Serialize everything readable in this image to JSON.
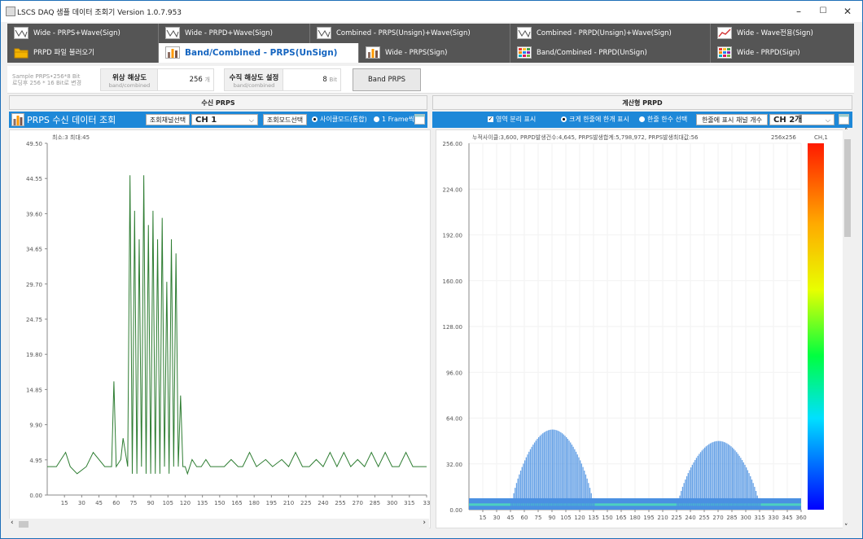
{
  "window": {
    "title": "LSCS DAQ 샘플 데이터 조회기 Version 1.0.7.953",
    "controls": {
      "min": "–",
      "max": "☐",
      "close": "✕"
    }
  },
  "tabs_row1": [
    {
      "label": "Wide - PRPS+Wave(Sign)",
      "icon": "wave-chart-icon"
    },
    {
      "label": "Wide - PRPD+Wave(Sign)",
      "icon": "wave-chart-icon"
    },
    {
      "label": "Combined - PRPS(Unsign)+Wave(Sign)",
      "icon": "wave-chart-icon"
    },
    {
      "label": "Combined - PRPD(Unsign)+Wave(Sign)",
      "icon": "wave-chart-icon"
    },
    {
      "label": "Wide - Wave전용(Sign)",
      "icon": "line-chart-icon"
    }
  ],
  "tabs_row2": [
    {
      "label": "PRPD 파일 불러오기",
      "icon": "folder-icon"
    },
    {
      "label": "Band/Combined - PRPS(UnSign)",
      "icon": "bar-chart-icon",
      "active": true
    },
    {
      "label": "Wide - PRPS(Sign)",
      "icon": "bar-chart-icon"
    },
    {
      "label": "Band/Combined - PRPD(UnSign)",
      "icon": "grid-chart-icon"
    },
    {
      "label": "Wide - PRPD(Sign)",
      "icon": "grid-chart-icon"
    }
  ],
  "settings": {
    "sample_line1": "Sample PRPS•256*8 Bit",
    "sample_line2": "로딩후 256 * 16 Bit로 변경",
    "phase_title": "위상 해상도",
    "phase_sub": "band/combined",
    "phase_value": "256",
    "phase_unit": "개",
    "vert_title": "수직 해상도 설정",
    "vert_sub": "band/combined",
    "vert_value": "8",
    "vert_unit": "Bit",
    "band_button": "Band PRPS"
  },
  "left": {
    "section": "수신 PRPS",
    "bar_title": "PRPS 수신 데이터 조회",
    "channel_label": "조회채널선택",
    "channel_value": "CH 1",
    "mode_label": "조회모드선택",
    "radio_cycle": "사이클모드(통합)",
    "radio_frame": "1 Frame씩"
  },
  "right": {
    "section": "계산형 PRPD",
    "check_label": "영역 분리 표시",
    "radio1": "크게 한줄에 한개 표시",
    "radio2": "한줄 한수 선택",
    "count_label": "한줄에 표시 채널 개수",
    "count_value": "CH 2개"
  },
  "chart_data": [
    {
      "type": "line",
      "title": "",
      "annotation": "최소:3 최대:45",
      "ylim": [
        0,
        49.5
      ],
      "y_ticks": [
        "0.00",
        "4.95",
        "9.90",
        "14.85",
        "19.80",
        "24.75",
        "29.70",
        "34.65",
        "39.60",
        "44.55",
        "49.50"
      ],
      "x_ticks": [
        "15",
        "30",
        "45",
        "60",
        "75",
        "90",
        "105",
        "120",
        "135",
        "150",
        "165",
        "180",
        "195",
        "210",
        "225",
        "240",
        "255",
        "270",
        "285",
        "300",
        "315",
        "33"
      ],
      "series": [
        {
          "color": "#2e7d32",
          "x": [
            0,
            8,
            16,
            20,
            26,
            34,
            40,
            50,
            56,
            58,
            60,
            64,
            66,
            70,
            72,
            74,
            76,
            78,
            80,
            82,
            84,
            86,
            88,
            90,
            92,
            94,
            96,
            98,
            100,
            102,
            104,
            106,
            108,
            110,
            112,
            114,
            116,
            118,
            120,
            122,
            126,
            130,
            134,
            138,
            142,
            146,
            150,
            154,
            160,
            166,
            170,
            176,
            182,
            190,
            196,
            204,
            210,
            216,
            222,
            228,
            234,
            240,
            246,
            252,
            258,
            264,
            270,
            276,
            282,
            288,
            294,
            300,
            306,
            312,
            318,
            324,
            330
          ],
          "values": [
            4,
            4,
            6,
            4,
            3,
            4,
            6,
            4,
            4,
            16,
            4,
            5,
            8,
            4,
            45,
            3,
            40,
            3,
            36,
            4,
            45,
            3,
            38,
            3,
            40,
            3,
            36,
            3,
            39,
            4,
            30,
            3,
            36,
            4,
            34,
            4,
            14,
            4,
            4,
            3,
            5,
            4,
            4,
            5,
            4,
            4,
            4,
            4,
            5,
            4,
            4,
            6,
            4,
            5,
            4,
            5,
            4,
            6,
            4,
            4,
            5,
            4,
            6,
            4,
            6,
            4,
            5,
            4,
            6,
            4,
            6,
            4,
            4,
            6,
            4,
            4,
            4
          ]
        }
      ]
    },
    {
      "type": "heatmap",
      "title": "",
      "annotation": "누적사이클:3,600, PRPD발생건수:4,645, PRPS발생합계:5,798,972, PRPS발생최대값:56",
      "size_label": "256x256",
      "colorbar_label": "CH,1",
      "ylim": [
        0,
        256
      ],
      "y_ticks": [
        "0.00",
        "32.00",
        "64.00",
        "96.00",
        "128.00",
        "160.00",
        "192.00",
        "224.00",
        "256.00"
      ],
      "x_ticks": [
        "15",
        "30",
        "45",
        "60",
        "75",
        "90",
        "105",
        "120",
        "135",
        "150",
        "165",
        "180",
        "195",
        "210",
        "225",
        "240",
        "255",
        "270",
        "285",
        "300",
        "315",
        "330",
        "345",
        "360"
      ],
      "clusters": [
        {
          "center_deg": 90,
          "half_width_deg": 45,
          "peak": 56
        },
        {
          "center_deg": 270,
          "half_width_deg": 45,
          "peak": 48
        }
      ],
      "baseline": 8,
      "colors": {
        "points": "#4a90e2",
        "base": "#4dd0c0"
      }
    }
  ]
}
